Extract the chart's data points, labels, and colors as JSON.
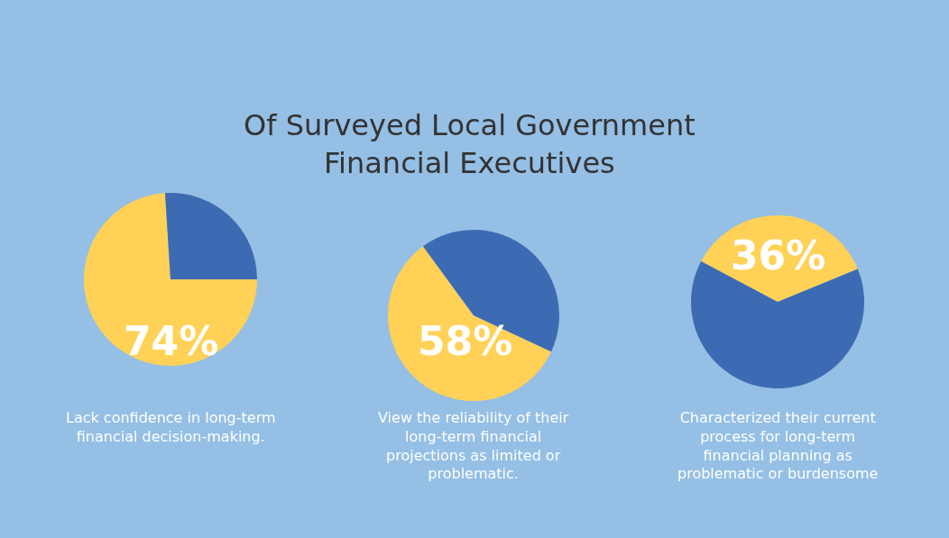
{
  "chart_data": [
    {
      "type": "pie",
      "title": "Of Surveyed Local Government\nFinancial Executives",
      "categories": [
        null,
        null
      ],
      "values": [
        74,
        26
      ],
      "colors": [
        "#ffd257",
        "#3d6bb3"
      ],
      "value_labels": [
        "74%",
        null
      ],
      "annotations": [
        "Lack confidence in long-term\nfinancial decision-making."
      ]
    },
    {
      "type": "pie",
      "categories": [
        null,
        null
      ],
      "values": [
        58,
        42
      ],
      "colors": [
        "#ffd257",
        "#3d6bb3"
      ],
      "value_labels": [
        "58%",
        null
      ],
      "annotations": [
        "View the reliability of their\nlong-term financial\nprojections as limited or\nproblematic."
      ]
    },
    {
      "type": "pie",
      "categories": [
        null,
        null
      ],
      "values": [
        36,
        64
      ],
      "colors": [
        "#ffd257",
        "#3d6bb3"
      ],
      "value_labels": [
        "36%",
        null
      ],
      "annotations": [
        "Characterized their current\nprocess for long-term\nfinancial planning as\nproblematic or burdensome"
      ]
    }
  ]
}
